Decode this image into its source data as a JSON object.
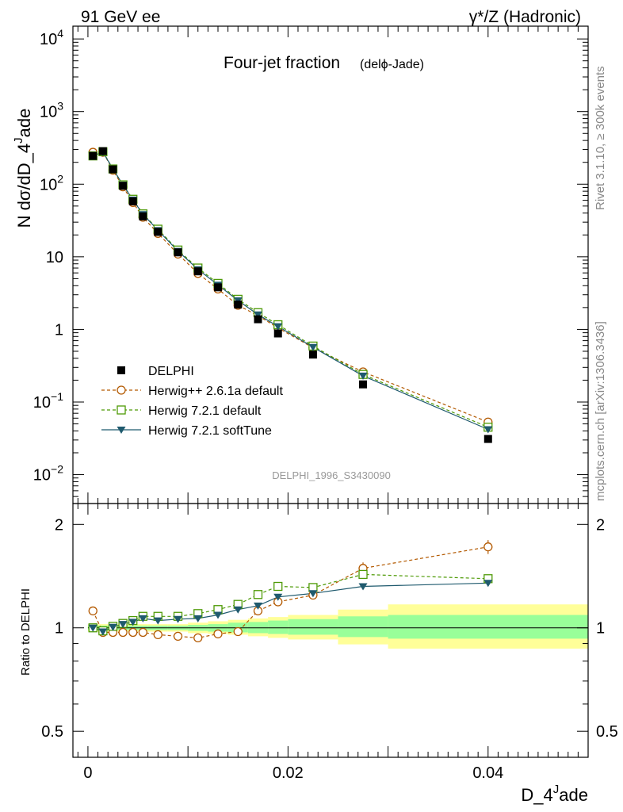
{
  "header": {
    "left": "91 GeV ee",
    "right": "γ*/Z (Hadronic)"
  },
  "side_text": {
    "rivet": "Rivet 3.1.10, ≥ 300k events",
    "mcplots": "mcplots.cern.ch [arXiv:1306.3436]"
  },
  "watermark": "DELPHI_1996_S3430090",
  "colors": {
    "delphi": "#000000",
    "herwigpp": "#b35900",
    "herwig721": "#4e9a06",
    "softtune": "#1f5a6e",
    "band_inner": "#99ff99",
    "band_outer": "#ffff99"
  },
  "chart_data": [
    {
      "type": "scatter",
      "log_y": true,
      "title": "Four-jet fraction",
      "subtitle": "(delϕ-Jade)",
      "ylabel": "N dσ/dD_4^Jade",
      "xlabel": "",
      "xlim": [
        -0.0015,
        0.05
      ],
      "ylim": [
        0.004,
        15000
      ],
      "y_ticks": [
        {
          "value": 0.01,
          "base": "10",
          "exp": "−2"
        },
        {
          "value": 0.1,
          "base": "10",
          "exp": "−1"
        },
        {
          "value": 1,
          "base": "1",
          "exp": ""
        },
        {
          "value": 10,
          "base": "10",
          "exp": ""
        },
        {
          "value": 100,
          "base": "10",
          "exp": "2"
        },
        {
          "value": 1000,
          "base": "10",
          "exp": "3"
        },
        {
          "value": 10000,
          "base": "10",
          "exp": "4"
        }
      ],
      "x": [
        0.0005,
        0.0015,
        0.0025,
        0.0035,
        0.0045,
        0.0055,
        0.007,
        0.009,
        0.011,
        0.013,
        0.015,
        0.017,
        0.019,
        0.0225,
        0.0275,
        0.04
      ],
      "series": [
        {
          "name": "DELPHI",
          "style": "data",
          "values": [
            245,
            285,
            160,
            95,
            58,
            36,
            22,
            11.5,
            6.3,
            3.8,
            2.2,
            1.38,
            0.88,
            0.45,
            0.175,
            0.031
          ]
        },
        {
          "name": "Herwig++ 2.6.1a default",
          "style": "herwigpp",
          "values": [
            275,
            275,
            156,
            92,
            56,
            35,
            21,
            10.9,
            5.9,
            3.6,
            2.15,
            1.55,
            1.05,
            0.56,
            0.26,
            0.053
          ]
        },
        {
          "name": "Herwig 7.2.1 default",
          "style": "herwig721",
          "values": [
            245,
            280,
            162,
            98,
            62,
            39,
            24,
            12.4,
            7.0,
            4.3,
            2.6,
            1.7,
            1.16,
            0.59,
            0.24,
            0.045
          ]
        },
        {
          "name": "Herwig 7.2.1 softTune",
          "style": "softtune",
          "values": [
            245,
            275,
            162,
            98,
            61,
            38.5,
            23.2,
            12.0,
            6.7,
            4.1,
            2.5,
            1.6,
            1.1,
            0.57,
            0.23,
            0.042
          ]
        }
      ],
      "legend_position": "bottom-left"
    },
    {
      "type": "scatter",
      "log_y": true,
      "ylabel": "Ratio to DELPHI",
      "xlabel": "D_4^Jade",
      "xlim": [
        -0.0015,
        0.05
      ],
      "ylim": [
        0.42,
        2.3
      ],
      "x_ticks": [
        {
          "value": 0,
          "label": "0"
        },
        {
          "value": 0.02,
          "label": "0.02"
        },
        {
          "value": 0.04,
          "label": "0.04"
        }
      ],
      "y_ticks": [
        {
          "value": 0.5,
          "label": "0.5"
        },
        {
          "value": 1,
          "label": "1"
        },
        {
          "value": 2,
          "label": "2"
        }
      ],
      "bands": [
        {
          "x0": 0,
          "x1": 0.001,
          "inner": [
            0.985,
            1.015
          ],
          "outer": [
            0.975,
            1.025
          ]
        },
        {
          "x0": 0.001,
          "x1": 0.002,
          "inner": [
            0.985,
            1.015
          ],
          "outer": [
            0.975,
            1.025
          ]
        },
        {
          "x0": 0.002,
          "x1": 0.003,
          "inner": [
            0.985,
            1.015
          ],
          "outer": [
            0.975,
            1.025
          ]
        },
        {
          "x0": 0.003,
          "x1": 0.004,
          "inner": [
            0.985,
            1.015
          ],
          "outer": [
            0.975,
            1.025
          ]
        },
        {
          "x0": 0.004,
          "x1": 0.005,
          "inner": [
            0.985,
            1.015
          ],
          "outer": [
            0.975,
            1.025
          ]
        },
        {
          "x0": 0.005,
          "x1": 0.006,
          "inner": [
            0.985,
            1.015
          ],
          "outer": [
            0.975,
            1.025
          ]
        },
        {
          "x0": 0.006,
          "x1": 0.008,
          "inner": [
            0.985,
            1.015
          ],
          "outer": [
            0.975,
            1.025
          ]
        },
        {
          "x0": 0.008,
          "x1": 0.01,
          "inner": [
            0.985,
            1.015
          ],
          "outer": [
            0.975,
            1.025
          ]
        },
        {
          "x0": 0.01,
          "x1": 0.012,
          "inner": [
            0.98,
            1.02
          ],
          "outer": [
            0.965,
            1.035
          ]
        },
        {
          "x0": 0.012,
          "x1": 0.014,
          "inner": [
            0.975,
            1.025
          ],
          "outer": [
            0.96,
            1.045
          ]
        },
        {
          "x0": 0.014,
          "x1": 0.016,
          "inner": [
            0.97,
            1.035
          ],
          "outer": [
            0.955,
            1.055
          ]
        },
        {
          "x0": 0.016,
          "x1": 0.018,
          "inner": [
            0.965,
            1.04
          ],
          "outer": [
            0.945,
            1.065
          ]
        },
        {
          "x0": 0.018,
          "x1": 0.02,
          "inner": [
            0.96,
            1.05
          ],
          "outer": [
            0.935,
            1.075
          ]
        },
        {
          "x0": 0.02,
          "x1": 0.025,
          "inner": [
            0.955,
            1.06
          ],
          "outer": [
            0.925,
            1.09
          ]
        },
        {
          "x0": 0.025,
          "x1": 0.03,
          "inner": [
            0.94,
            1.08
          ],
          "outer": [
            0.895,
            1.13
          ]
        },
        {
          "x0": 0.03,
          "x1": 0.05,
          "inner": [
            0.93,
            1.09
          ],
          "outer": [
            0.87,
            1.17
          ]
        }
      ],
      "series": [
        {
          "name": "Herwig++ 2.6.1a default",
          "style": "herwigpp",
          "values": [
            1.12,
            0.97,
            0.97,
            0.97,
            0.97,
            0.97,
            0.955,
            0.945,
            0.935,
            0.96,
            0.975,
            1.12,
            1.19,
            1.245,
            1.49,
            1.72
          ],
          "errors": [
            0,
            0,
            0,
            0,
            0,
            0,
            0,
            0,
            0,
            0,
            0,
            0,
            0,
            0,
            0.06,
            0.08
          ]
        },
        {
          "name": "Herwig 7.2.1 default",
          "style": "herwig721",
          "values": [
            1.0,
            0.98,
            1.01,
            1.03,
            1.05,
            1.08,
            1.08,
            1.08,
            1.1,
            1.13,
            1.17,
            1.25,
            1.32,
            1.31,
            1.43,
            1.39
          ]
        },
        {
          "name": "Herwig 7.2.1 softTune",
          "style": "softtune",
          "values": [
            1.0,
            0.975,
            1.005,
            1.025,
            1.04,
            1.065,
            1.05,
            1.06,
            1.065,
            1.09,
            1.13,
            1.16,
            1.23,
            1.26,
            1.32,
            1.35
          ]
        }
      ]
    }
  ]
}
